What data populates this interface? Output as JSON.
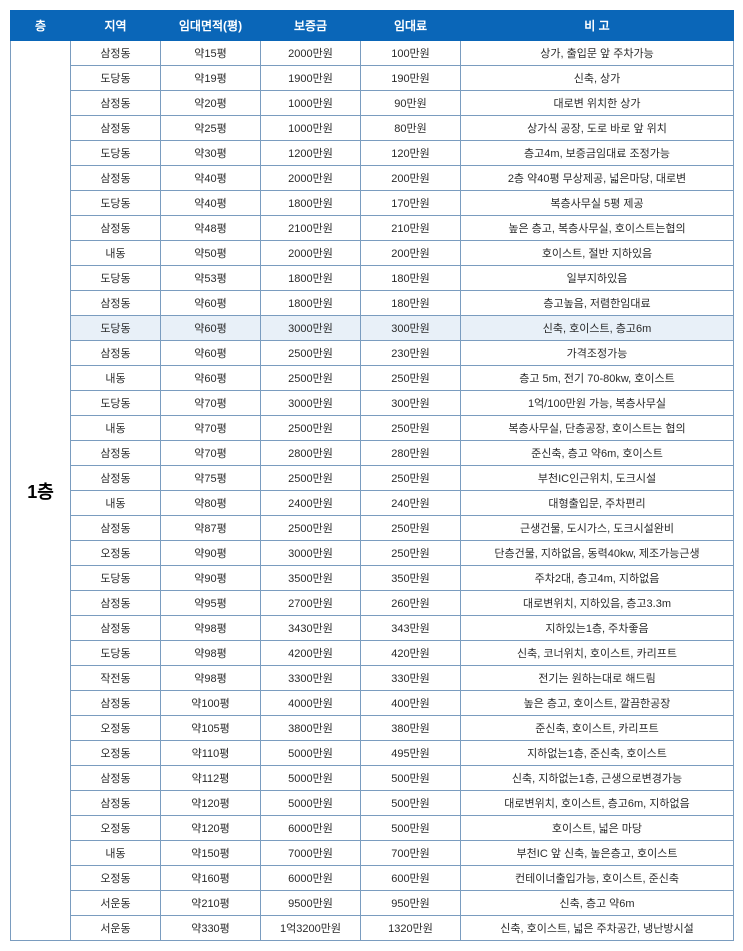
{
  "columns": [
    "층",
    "지역",
    "임대면적(평)",
    "보증금",
    "임대료",
    "비  고"
  ],
  "floorLabel": "1층",
  "highlightRows": [
    11
  ],
  "rows": [
    [
      "삼정동",
      "약15평",
      "2000만원",
      "100만원",
      "상가, 출입문 앞 주차가능"
    ],
    [
      "도당동",
      "약19평",
      "1900만원",
      "190만원",
      "신축, 상가"
    ],
    [
      "삼정동",
      "약20평",
      "1000만원",
      "90만원",
      "대로변 위치한 상가"
    ],
    [
      "삼정동",
      "약25평",
      "1000만원",
      "80만원",
      "상가식 공장, 도로 바로 앞 위치"
    ],
    [
      "도당동",
      "약30평",
      "1200만원",
      "120만원",
      "층고4m, 보증금임대료 조정가능"
    ],
    [
      "삼정동",
      "약40평",
      "2000만원",
      "200만원",
      "2층 약40평 무상제공, 넓은마당, 대로변"
    ],
    [
      "도당동",
      "약40평",
      "1800만원",
      "170만원",
      "복층사무실 5평 제공"
    ],
    [
      "삼정동",
      "약48평",
      "2100만원",
      "210만원",
      "높은 층고, 복층사무실, 호이스트는협의"
    ],
    [
      "내동",
      "약50평",
      "2000만원",
      "200만원",
      "호이스트, 절반 지하있음"
    ],
    [
      "도당동",
      "약53평",
      "1800만원",
      "180만원",
      "일부지하있음"
    ],
    [
      "삼정동",
      "약60평",
      "1800만원",
      "180만원",
      "층고높음, 저렴한임대료"
    ],
    [
      "도당동",
      "약60평",
      "3000만원",
      "300만원",
      "신축, 호이스트, 층고6m"
    ],
    [
      "삼정동",
      "약60평",
      "2500만원",
      "230만원",
      "가격조정가능"
    ],
    [
      "내동",
      "약60평",
      "2500만원",
      "250만원",
      "층고 5m, 전기 70-80kw, 호이스트"
    ],
    [
      "도당동",
      "약70평",
      "3000만원",
      "300만원",
      "1억/100만원 가능, 복층사무실"
    ],
    [
      "내동",
      "약70평",
      "2500만원",
      "250만원",
      "복층사무실, 단층공장, 호이스트는 협의"
    ],
    [
      "삼정동",
      "약70평",
      "2800만원",
      "280만원",
      "준신축, 층고 약6m, 호이스트"
    ],
    [
      "삼정동",
      "약75평",
      "2500만원",
      "250만원",
      "부천IC인근위치, 도크시설"
    ],
    [
      "내동",
      "약80평",
      "2400만원",
      "240만원",
      "대형출입문, 주차편리"
    ],
    [
      "삼정동",
      "약87평",
      "2500만원",
      "250만원",
      "근생건물, 도시가스, 도크시설완비"
    ],
    [
      "오정동",
      "약90평",
      "3000만원",
      "250만원",
      "단층건물, 지하없음, 동력40kw, 제조가능근생"
    ],
    [
      "도당동",
      "약90평",
      "3500만원",
      "350만원",
      "주차2대, 층고4m, 지하없음"
    ],
    [
      "삼정동",
      "약95평",
      "2700만원",
      "260만원",
      "대로변위치, 지하있음, 층고3.3m"
    ],
    [
      "삼정동",
      "약98평",
      "3430만원",
      "343만원",
      "지하있는1층, 주차좋음"
    ],
    [
      "도당동",
      "약98평",
      "4200만원",
      "420만원",
      "신축, 코너위치, 호이스트, 카리프트"
    ],
    [
      "작전동",
      "약98평",
      "3300만원",
      "330만원",
      "전기는 원하는대로 해드림"
    ],
    [
      "삼정동",
      "약100평",
      "4000만원",
      "400만원",
      "높은 층고, 호이스트, 깔끔한공장"
    ],
    [
      "오정동",
      "약105평",
      "3800만원",
      "380만원",
      "준신축, 호이스트, 카리프트"
    ],
    [
      "오정동",
      "약110평",
      "5000만원",
      "495만원",
      "지하없는1층, 준신축, 호이스트"
    ],
    [
      "삼정동",
      "약112평",
      "5000만원",
      "500만원",
      "신축, 지하없는1층, 근생으로변경가능"
    ],
    [
      "삼정동",
      "약120평",
      "5000만원",
      "500만원",
      "대로변위치, 호이스트, 층고6m, 지하없음"
    ],
    [
      "오정동",
      "약120평",
      "6000만원",
      "500만원",
      "호이스트, 넓은 마당"
    ],
    [
      "내동",
      "약150평",
      "7000만원",
      "700만원",
      "부천IC 앞 신축, 높은층고, 호이스트"
    ],
    [
      "오정동",
      "약160평",
      "6000만원",
      "600만원",
      "컨테이너출입가능, 호이스트, 준신축"
    ],
    [
      "서운동",
      "약210평",
      "9500만원",
      "950만원",
      "신축, 층고 약6m"
    ],
    [
      "서운동",
      "약330평",
      "1억3200만원",
      "1320만원",
      "신축, 호이스트, 넓은 주차공간, 냉난방시설"
    ]
  ]
}
